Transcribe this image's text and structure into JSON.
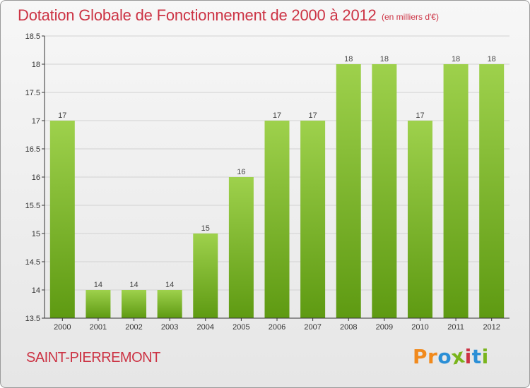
{
  "title": "Dotation Globale de Fonctionnement de 2000 à 2012",
  "subtitle": "(en milliers d'€)",
  "location": "SAINT-PIERREMONT",
  "brand": {
    "letters": [
      "P",
      "r",
      "o",
      "x",
      "i",
      "t",
      "i"
    ],
    "colors": [
      "#f18a1d",
      "#f18a1d",
      "#2b8fd6",
      "#7ab51d",
      "#cc3344",
      "#2b8fd6",
      "#7ab51d"
    ]
  },
  "colors": {
    "bar_top": "#9ed14c",
    "bar_bottom": "#5e9a12",
    "grid": "#d2d2d2",
    "axis": "#333333",
    "title": "#cc3344"
  },
  "chart_data": {
    "type": "bar",
    "title": "Dotation Globale de Fonctionnement de 2000 à 2012",
    "subtitle": "(en milliers d'€)",
    "categories": [
      "2000",
      "2001",
      "2002",
      "2003",
      "2004",
      "2005",
      "2006",
      "2007",
      "2008",
      "2009",
      "2010",
      "2011",
      "2012"
    ],
    "values": [
      17,
      14,
      14,
      14,
      15,
      16,
      17,
      17,
      18,
      18,
      17,
      18,
      18
    ],
    "data_labels": [
      "17",
      "14",
      "14",
      "14",
      "15",
      "16",
      "17",
      "17",
      "18",
      "18",
      "17",
      "18",
      "18"
    ],
    "ylim": [
      13.5,
      18.5
    ],
    "yticks": [
      13.5,
      14,
      14.5,
      15,
      15.5,
      16,
      16.5,
      17,
      17.5,
      18,
      18.5
    ],
    "ytick_labels": [
      "13.5",
      "14",
      "14.5",
      "15",
      "15.5",
      "16",
      "16.5",
      "17",
      "17.5",
      "18",
      "18.5"
    ],
    "grid": true,
    "legend": false
  }
}
